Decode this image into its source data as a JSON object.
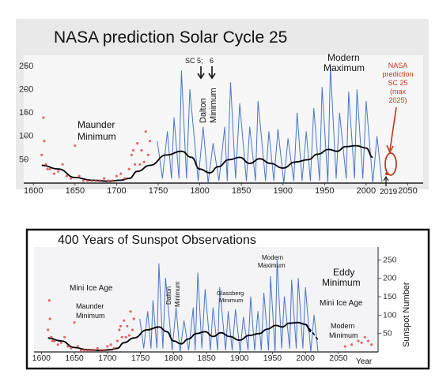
{
  "colors": {
    "background": "#ffffff",
    "panel_top": "#e9e9ea",
    "plot_bg": "#f7f7f8",
    "sunspot_blue": "#2a5fbf",
    "smoothed": "#000000",
    "observations_red": "#d93b3b",
    "prediction_red": "#c0391b",
    "title_text": "#111111"
  },
  "chart_data": [
    {
      "type": "line",
      "title": "NASA prediction Solar Cycle 25",
      "xlim": [
        1595,
        2060
      ],
      "ylim": [
        0,
        270
      ],
      "xticks": [
        "1600",
        "1650",
        "1700",
        "1750",
        "1800",
        "1850",
        "1900",
        "1950",
        "2000",
        "2050"
      ],
      "yticks": [
        "50",
        "100",
        "150",
        "200",
        "250"
      ],
      "grid": false,
      "series": [
        {
          "style": "monthly sunspot number (blue)",
          "x": [
            1749,
            1755,
            1761,
            1766,
            1769,
            1775,
            1778,
            1784,
            1788,
            1798,
            1804,
            1810,
            1816,
            1823,
            1830,
            1833,
            1837,
            1843,
            1848,
            1856,
            1860,
            1867,
            1870,
            1879,
            1883,
            1889,
            1894,
            1901,
            1906,
            1913,
            1917,
            1923,
            1928,
            1933,
            1937,
            1944,
            1947,
            1954,
            1957,
            1964,
            1968,
            1976,
            1979,
            1986,
            1989,
            1996,
            2000,
            2008,
            2013,
            2019
          ],
          "y": [
            90,
            10,
            110,
            10,
            140,
            10,
            240,
            10,
            200,
            5,
            120,
            0,
            85,
            5,
            120,
            5,
            215,
            10,
            170,
            5,
            120,
            5,
            175,
            5,
            110,
            5,
            115,
            0,
            95,
            5,
            150,
            5,
            110,
            5,
            160,
            5,
            205,
            0,
            250,
            10,
            150,
            10,
            195,
            10,
            200,
            10,
            175,
            0,
            100,
            2
          ]
        },
        {
          "style": "smoothed average (black)",
          "x": [
            1610,
            1630,
            1650,
            1670,
            1690,
            1705,
            1715,
            1725,
            1740,
            1760,
            1778,
            1790,
            1800,
            1812,
            1822,
            1835,
            1848,
            1860,
            1872,
            1885,
            1900,
            1915,
            1930,
            1942,
            1955,
            1965,
            1975,
            1988,
            2000,
            2008
          ],
          "y": [
            38,
            30,
            12,
            6,
            4,
            6,
            10,
            25,
            38,
            60,
            68,
            55,
            30,
            22,
            35,
            50,
            55,
            42,
            52,
            42,
            32,
            45,
            50,
            62,
            72,
            68,
            78,
            80,
            75,
            55
          ]
        },
        {
          "style": "telescope observations (red dots)",
          "x": [
            1610,
            1612,
            1613,
            1615,
            1617,
            1620,
            1625,
            1630,
            1635,
            1640,
            1645,
            1650,
            1655,
            1660,
            1665,
            1670,
            1675,
            1680,
            1685,
            1690,
            1695,
            1700,
            1705,
            1710,
            1715,
            1718,
            1720,
            1722,
            1725,
            1728,
            1730,
            1733,
            1735,
            1738,
            1740
          ],
          "y": [
            60,
            140,
            90,
            40,
            30,
            30,
            20,
            25,
            40,
            15,
            10,
            80,
            15,
            5,
            5,
            5,
            5,
            5,
            10,
            5,
            5,
            15,
            20,
            10,
            30,
            60,
            70,
            40,
            85,
            40,
            70,
            45,
            110,
            60,
            90
          ]
        }
      ],
      "annotations": [
        "Maunder",
        "Minimum",
        "SC 5;",
        "6",
        "Dalton",
        "Minimum",
        "Modern",
        "Maximum",
        "NASA",
        "prediction",
        "SC 25",
        "(max",
        "2025)",
        "2019"
      ],
      "prediction": {
        "peak_year": 2025,
        "peak_value": 20
      }
    },
    {
      "type": "line",
      "title": "400 Years of Sunspot Observations",
      "ylabel": "Sunspot Number",
      "xlabel": "Year",
      "xlim": [
        1590,
        2110
      ],
      "ylim": [
        0,
        270
      ],
      "xticks": [
        "1600",
        "1650",
        "1700",
        "1750",
        "1800",
        "1850",
        "1900",
        "1950",
        "2000",
        "2050"
      ],
      "yticks": [
        "50",
        "100",
        "150",
        "200",
        "250"
      ],
      "grid": false,
      "series": [
        {
          "style": "monthly sunspot number (blue)",
          "x": [
            1749,
            1755,
            1761,
            1766,
            1769,
            1775,
            1778,
            1784,
            1788,
            1798,
            1804,
            1810,
            1816,
            1823,
            1830,
            1833,
            1837,
            1843,
            1848,
            1856,
            1860,
            1867,
            1870,
            1879,
            1883,
            1889,
            1894,
            1901,
            1906,
            1913,
            1917,
            1923,
            1928,
            1933,
            1937,
            1944,
            1947,
            1954,
            1957,
            1964,
            1968,
            1976,
            1979,
            1986,
            1989,
            1996,
            2000,
            2008,
            2013,
            2019
          ],
          "y": [
            90,
            10,
            110,
            10,
            140,
            10,
            240,
            10,
            200,
            5,
            120,
            0,
            85,
            5,
            120,
            5,
            215,
            10,
            170,
            5,
            120,
            5,
            175,
            5,
            110,
            5,
            115,
            0,
            95,
            5,
            150,
            5,
            110,
            5,
            160,
            5,
            205,
            0,
            250,
            10,
            150,
            10,
            195,
            10,
            200,
            10,
            175,
            0,
            100,
            2
          ]
        },
        {
          "style": "smoothed average (black)",
          "x": [
            1610,
            1630,
            1650,
            1670,
            1690,
            1705,
            1715,
            1725,
            1740,
            1760,
            1778,
            1790,
            1800,
            1812,
            1822,
            1835,
            1848,
            1860,
            1872,
            1885,
            1900,
            1915,
            1930,
            1942,
            1955,
            1965,
            1975,
            1988,
            2000,
            2008
          ],
          "y": [
            38,
            30,
            12,
            6,
            4,
            6,
            10,
            25,
            38,
            60,
            68,
            55,
            30,
            22,
            35,
            50,
            55,
            42,
            52,
            42,
            32,
            45,
            50,
            62,
            72,
            68,
            78,
            80,
            75,
            55
          ]
        },
        {
          "style": "projected average (dashed)",
          "x": [
            1975,
            1988,
            2000,
            2010,
            2020
          ],
          "y": [
            78,
            80,
            75,
            55,
            30
          ]
        },
        {
          "style": "telescope observations (red dots)",
          "x": [
            1610,
            1612,
            1613,
            1615,
            1617,
            1620,
            1625,
            1630,
            1635,
            1640,
            1645,
            1650,
            1655,
            1660,
            1665,
            1670,
            1675,
            1680,
            1685,
            1690,
            1695,
            1700,
            1705,
            1710,
            1715,
            1718,
            1720,
            1722,
            1725,
            1728,
            1730,
            1733,
            1735,
            1738,
            1740,
            2060,
            2070,
            2080,
            2085,
            2090,
            2095,
            2100
          ],
          "y": [
            60,
            140,
            90,
            40,
            30,
            30,
            20,
            25,
            40,
            15,
            10,
            80,
            15,
            5,
            5,
            5,
            5,
            5,
            10,
            5,
            5,
            15,
            20,
            10,
            30,
            60,
            70,
            40,
            85,
            40,
            70,
            45,
            110,
            60,
            90,
            15,
            20,
            30,
            25,
            40,
            30,
            20
          ]
        }
      ],
      "annotations": [
        "Mini Ice Age",
        "Maunder",
        "Minimum",
        "Dalton",
        "Minimum",
        "Glassberg",
        "Minimum",
        "Modern",
        "Maximum",
        "Eddy",
        "Minimum",
        "Mini Ice Age",
        "Modern",
        "Minimum"
      ]
    }
  ]
}
